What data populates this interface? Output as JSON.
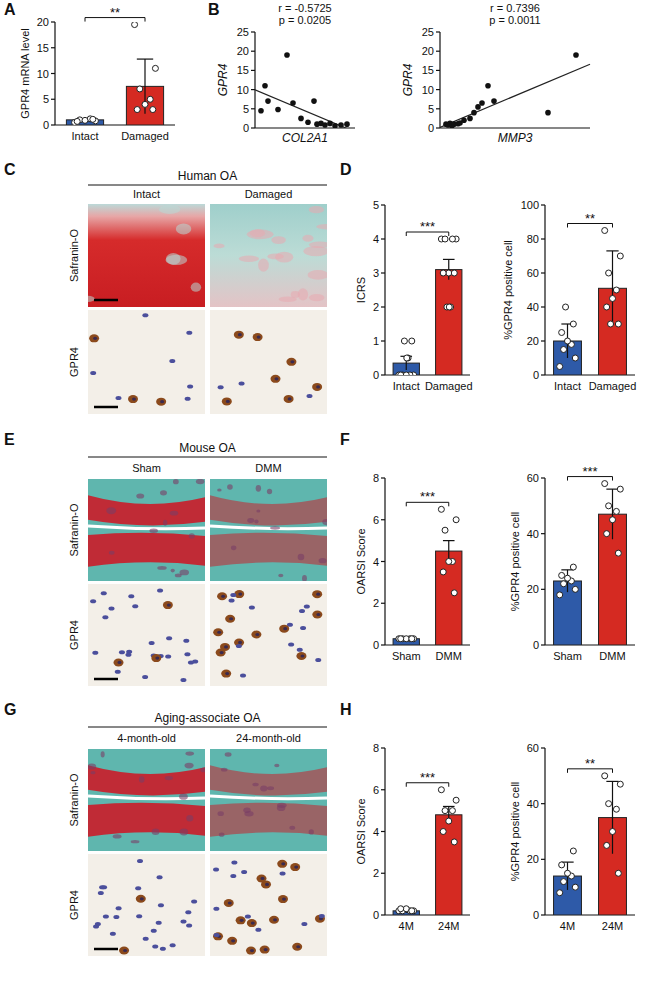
{
  "chart_data": [
    {
      "panel": "A",
      "type": "bar",
      "y_label": "GPR4 mRNA level",
      "categories": [
        "Intact",
        "Damaged"
      ],
      "values": [
        1,
        7.5
      ],
      "errors": [
        0.2,
        5.3
      ],
      "points": [
        [
          0.5,
          0.8,
          1.0,
          1.2,
          0.9,
          0.7,
          1.1
        ],
        [
          19.5,
          11,
          7,
          5,
          4,
          3,
          3
        ]
      ],
      "colors": [
        "#2e5aa8",
        "#d52a22"
      ],
      "ylim": [
        0,
        20
      ],
      "yticks": [
        0,
        5,
        10,
        15,
        20
      ],
      "significance": "**"
    },
    {
      "panel": "B",
      "type": "scatter",
      "x_label": "COL2A1",
      "y_label": "GPR4",
      "annotations": [
        "r = -0.5725",
        "p = 0.0205"
      ],
      "x": [
        0.6,
        1.0,
        1.3,
        2.3,
        3.2,
        3.8,
        4.6,
        5.3,
        5.9,
        6.2,
        6.6,
        7.0,
        7.5,
        8.0,
        8.6,
        9.2
      ],
      "y": [
        4.5,
        11,
        7,
        4.8,
        19,
        6.5,
        2.5,
        1.5,
        7,
        1,
        1.2,
        0.8,
        1.2,
        0.6,
        0.8,
        1
      ],
      "color": "#111111",
      "xlim": [
        0,
        10
      ],
      "ylim": [
        0,
        25
      ],
      "yticks": [
        0,
        5,
        10,
        15,
        20,
        25
      ],
      "tick_labels": "y"
    },
    {
      "type": "scatter",
      "x_label": "MMP3",
      "y_label": "GPR4",
      "annotations": [
        "r = 0.7396",
        "p = 0.0011"
      ],
      "x": [
        0.3,
        0.4,
        0.5,
        0.6,
        0.7,
        0.9,
        1.0,
        1.2,
        1.5,
        1.7,
        1.9,
        2.1,
        2.4,
        2.7,
        5.4,
        6.8
      ],
      "y": [
        1,
        0.8,
        1.2,
        0.6,
        1,
        1.1,
        1.3,
        2,
        2.5,
        4,
        5.5,
        6.5,
        11,
        7,
        4,
        19
      ],
      "color": "#111111",
      "xlim": [
        0,
        7.5
      ],
      "ylim": [
        0,
        25
      ],
      "yticks": [
        0,
        5,
        10,
        15,
        20,
        25
      ],
      "tick_labels": "y"
    },
    {
      "panel": "D",
      "type": "bar",
      "y_label": "ICRS",
      "categories": [
        "Intact",
        "Damaged"
      ],
      "values": [
        0.35,
        3.1
      ],
      "errors": [
        0.2,
        0.3
      ],
      "points": [
        [
          0,
          0,
          0,
          0,
          0,
          0,
          1,
          1,
          0.5,
          0.5
        ],
        [
          4,
          4,
          4,
          4,
          3,
          3,
          3,
          2,
          2,
          2
        ]
      ],
      "colors": [
        "#2e5aa8",
        "#d52a22"
      ],
      "ylim": [
        0,
        5
      ],
      "yticks": [
        0,
        1,
        2,
        3,
        4,
        5
      ],
      "significance": "***"
    },
    {
      "type": "bar",
      "y_label": "%GPR4 positive cell",
      "categories": [
        "Intact",
        "Damaged"
      ],
      "values": [
        20,
        51
      ],
      "errors": [
        10,
        22
      ],
      "points": [
        [
          5,
          10,
          15,
          18,
          20,
          25,
          30,
          40
        ],
        [
          85,
          70,
          60,
          50,
          45,
          40,
          30,
          30
        ]
      ],
      "colors": [
        "#2e5aa8",
        "#d52a22"
      ],
      "ylim": [
        0,
        100
      ],
      "yticks": [
        0,
        20,
        40,
        60,
        80,
        100
      ],
      "significance": "**"
    },
    {
      "panel": "F",
      "type": "bar",
      "y_label": "OARSI Score",
      "categories": [
        "Sham",
        "DMM"
      ],
      "values": [
        0.3,
        4.5
      ],
      "errors": [
        0.1,
        0.5
      ],
      "points": [
        [
          0.3,
          0.3,
          0.3,
          0.3,
          0.3,
          0.3,
          0.3
        ],
        [
          6.5,
          6,
          5.5,
          4,
          4,
          3.5,
          2.5
        ]
      ],
      "colors": [
        "#2e5aa8",
        "#d52a22"
      ],
      "ylim": [
        0,
        8
      ],
      "yticks": [
        0,
        2,
        4,
        6,
        8
      ],
      "significance": "***"
    },
    {
      "type": "bar",
      "y_label": "%GPR4 positive cell",
      "categories": [
        "Sham",
        "DMM"
      ],
      "values": [
        23,
        47
      ],
      "errors": [
        4,
        9
      ],
      "points": [
        [
          18,
          20,
          22,
          23,
          24,
          25,
          28
        ],
        [
          58,
          56,
          50,
          48,
          45,
          40,
          33
        ]
      ],
      "colors": [
        "#2e5aa8",
        "#d52a22"
      ],
      "ylim": [
        0,
        60
      ],
      "yticks": [
        0,
        20,
        40,
        60
      ],
      "significance": "***"
    },
    {
      "panel": "H",
      "type": "bar",
      "y_label": "OARSI Score",
      "categories": [
        "4M",
        "24M"
      ],
      "values": [
        0.2,
        4.8
      ],
      "errors": [
        0.1,
        0.4
      ],
      "points": [
        [
          0.2,
          0.2,
          0.2,
          0.2,
          0.3,
          0.3,
          0.2
        ],
        [
          6,
          5.5,
          5,
          5,
          4.5,
          4,
          3.5
        ]
      ],
      "colors": [
        "#2e5aa8",
        "#d52a22"
      ],
      "ylim": [
        0,
        8
      ],
      "yticks": [
        0,
        2,
        4,
        6,
        8
      ],
      "significance": "***"
    },
    {
      "type": "bar",
      "y_label": "%GPR4 positive cell",
      "categories": [
        "4M",
        "24M"
      ],
      "values": [
        14,
        35
      ],
      "errors": [
        5,
        13
      ],
      "points": [
        [
          8,
          10,
          12,
          14,
          15,
          18,
          23
        ],
        [
          50,
          47,
          40,
          38,
          30,
          25,
          15
        ]
      ],
      "colors": [
        "#2e5aa8",
        "#d52a22"
      ],
      "ylim": [
        0,
        60
      ],
      "yticks": [
        0,
        20,
        40,
        60
      ],
      "significance": "**"
    }
  ],
  "images": [
    {
      "panel": "C",
      "title": "Human OA",
      "columns": [
        "Intact",
        "Damaged"
      ],
      "rows": [
        "Safranin-O",
        "GPR4"
      ]
    },
    {
      "panel": "E",
      "title": "Mouse OA",
      "columns": [
        "Sham",
        "DMM"
      ],
      "rows": [
        "Safranin-O",
        "GPR4"
      ]
    },
    {
      "panel": "G",
      "title": "Aging-associate OA",
      "columns": [
        "4-month-old",
        "24-month-old"
      ],
      "rows": [
        "Safranin-O",
        "GPR4"
      ]
    }
  ]
}
